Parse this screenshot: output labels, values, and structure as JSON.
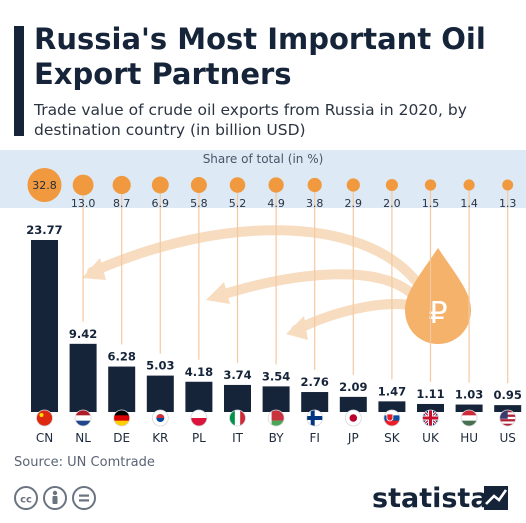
{
  "header": {
    "title": "Russia's Most Important Oil Export Partners",
    "subtitle": "Trade value of crude oil exports from Russia in 2020, by destination country (in billion USD)"
  },
  "share_label": "Share of total (in %)",
  "source": "Source: UN Comtrade",
  "brand": "statista",
  "colors": {
    "bar": "#16243a",
    "bubble": "#f0993e",
    "band": "#dde9f4",
    "drop": "#f4b26b",
    "arrow": "#f7dcc0"
  },
  "chart_data": {
    "type": "bar",
    "title": "Russia's Most Important Oil Export Partners",
    "subtitle": "Trade value of crude oil exports from Russia in 2020, by destination country (in billion USD)",
    "categories": [
      "CN",
      "NL",
      "DE",
      "KR",
      "PL",
      "IT",
      "BY",
      "FI",
      "JP",
      "SK",
      "UK",
      "HU",
      "US"
    ],
    "values": [
      23.77,
      9.42,
      6.28,
      5.03,
      4.18,
      3.74,
      3.54,
      2.76,
      2.09,
      1.47,
      1.11,
      1.03,
      0.95
    ],
    "value_labels": [
      "23.77",
      "9.42",
      "6.28",
      "5.03",
      "4.18",
      "3.74",
      "3.54",
      "2.76",
      "2.09",
      "1.47",
      "1.11",
      "1.03",
      "0.95"
    ],
    "share_of_total": [
      32.8,
      13.0,
      8.7,
      6.9,
      5.8,
      5.2,
      4.9,
      3.8,
      2.9,
      2.0,
      1.5,
      1.4,
      1.3
    ],
    "share_labels": [
      "32.8",
      "13.0",
      "8.7",
      "6.9",
      "5.8",
      "5.2",
      "4.9",
      "3.8",
      "2.9",
      "2.0",
      "1.5",
      "1.4",
      "1.3"
    ],
    "ylim": [
      0,
      23.77
    ],
    "grid": false,
    "legend": "none"
  }
}
